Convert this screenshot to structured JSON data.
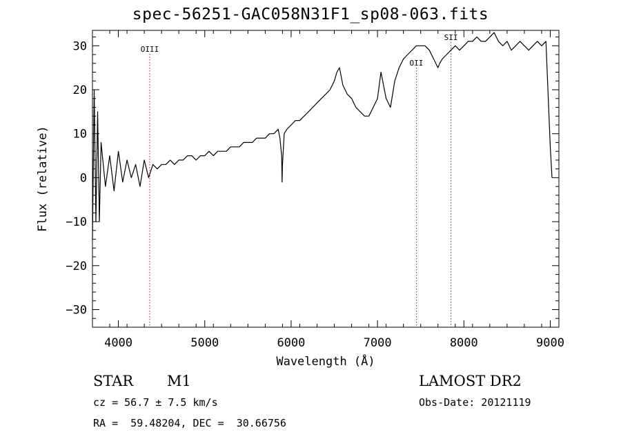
{
  "chart_data": {
    "type": "line",
    "title": "spec-56251-GAC058N31F1_sp08-063.fits",
    "xlabel": "Wavelength (Å)",
    "ylabel": "Flux (relative)",
    "xlim": [
      3700,
      9100
    ],
    "ylim": [
      -34,
      33.5
    ],
    "xticks": [
      4000,
      5000,
      6000,
      7000,
      8000,
      9000
    ],
    "yticks": [
      -30,
      -20,
      -10,
      0,
      10,
      20,
      30
    ],
    "grid": false,
    "series": [
      {
        "x": [
          3700,
          3720,
          3740,
          3760,
          3780,
          3800,
          3850,
          3900,
          3950,
          4000,
          4050,
          4100,
          4150,
          4200,
          4250,
          4300,
          4350,
          4400,
          4450,
          4500,
          4550,
          4600,
          4650,
          4700,
          4750,
          4800,
          4850,
          4900,
          4950,
          5000,
          5050,
          5100,
          5150,
          5200,
          5250,
          5300,
          5350,
          5400,
          5450,
          5500,
          5550,
          5600,
          5650,
          5700,
          5750,
          5800,
          5850,
          5870,
          5890,
          5895,
          5900,
          5920,
          5950,
          6000,
          6050,
          6100,
          6150,
          6200,
          6250,
          6300,
          6350,
          6400,
          6450,
          6500,
          6530,
          6560,
          6580,
          6600,
          6650,
          6700,
          6750,
          6800,
          6850,
          6900,
          6950,
          7000,
          7020,
          7040,
          7060,
          7080,
          7100,
          7150,
          7200,
          7250,
          7300,
          7350,
          7400,
          7450,
          7500,
          7550,
          7600,
          7650,
          7700,
          7720,
          7750,
          7800,
          7850,
          7900,
          7950,
          8000,
          8050,
          8100,
          8150,
          8200,
          8250,
          8300,
          8350,
          8400,
          8450,
          8500,
          8550,
          8600,
          8650,
          8700,
          8750,
          8800,
          8850,
          8900,
          8950,
          9000,
          9020
        ],
        "values": [
          -14,
          20,
          -10,
          15,
          -10,
          8,
          -2,
          5,
          -3,
          6,
          -1,
          4,
          0,
          3,
          -2,
          4,
          0,
          3,
          2,
          3,
          3,
          4,
          3,
          4,
          4,
          5,
          5,
          4,
          5,
          5,
          6,
          5,
          6,
          6,
          6,
          7,
          7,
          7,
          8,
          8,
          8,
          9,
          9,
          9,
          10,
          10,
          11,
          9,
          5,
          -1,
          3,
          10,
          11,
          12,
          13,
          13,
          14,
          15,
          16,
          17,
          18,
          19,
          20,
          22,
          24,
          25,
          23,
          21,
          19,
          18,
          16,
          15,
          14,
          14,
          16,
          18,
          21,
          24,
          22,
          20,
          18,
          16,
          22,
          25,
          27,
          28,
          29,
          30,
          30,
          30,
          29,
          27,
          25,
          26,
          27,
          28,
          29,
          30,
          29,
          30,
          31,
          31,
          32,
          31,
          31,
          32,
          33,
          31,
          30,
          31,
          29,
          30,
          31,
          30,
          29,
          30,
          31,
          30,
          31,
          7,
          0
        ]
      }
    ],
    "lines": [
      {
        "label": "OIII",
        "x": 4363
      },
      {
        "label": "OII",
        "x": 7450
      },
      {
        "label": "SII",
        "x": 7850
      }
    ]
  },
  "info": {
    "star": "STAR",
    "subclass": "M1",
    "survey": "LAMOST DR2",
    "cz": "cz = 56.7 ± 7.5 km/s",
    "obs_date": "Obs-Date: 20121119",
    "radec": "RA =  59.48204, DEC =  30.66756"
  },
  "colors": {
    "line": "#000000",
    "marker": "#9b1c1c",
    "background": "#ffffff"
  }
}
